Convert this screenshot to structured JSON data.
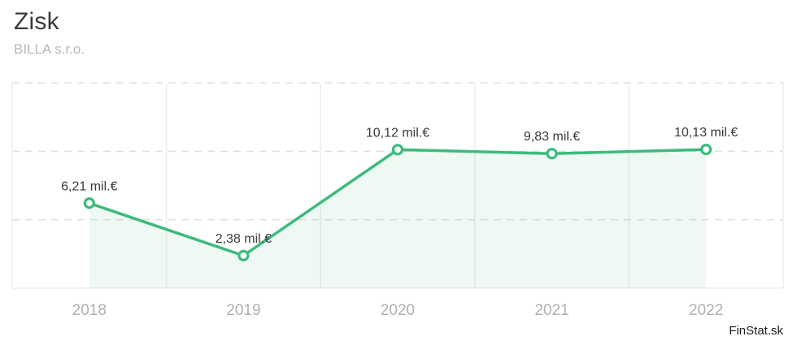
{
  "header": {
    "title": "Zisk",
    "subtitle": "BILLA s.r.o."
  },
  "watermark": {
    "text": "FinStat.sk"
  },
  "chart_data": {
    "type": "line",
    "title": "Zisk",
    "subtitle": "BILLA s.r.o.",
    "categories": [
      "2018",
      "2019",
      "2020",
      "2021",
      "2022"
    ],
    "values": [
      6.21,
      2.38,
      10.12,
      9.83,
      10.13
    ],
    "point_labels": [
      "6,21 mil.€",
      "2,38 mil.€",
      "10,12 mil.€",
      "9,83 mil.€",
      "10,13 mil.€"
    ],
    "unit": "mil.€",
    "xlabel": "",
    "ylabel": "",
    "ylim": [
      0,
      15
    ],
    "gridline_step": 5,
    "grid": "horizontal dashed gridlines at 5/10/15, vertical solid column separators, no y-axis tick labels",
    "legend": "none",
    "area_fill_under_line": true,
    "colors": {
      "line": "#3dba7c",
      "marker_fill": "#ffffff",
      "area_fill": "rgba(61,186,124,0.09)",
      "point_label": "#3a3a3a",
      "axis_label": "#b1aeb4",
      "gridline_dashed": "#e0e0e0",
      "gridline_solid": "#ededed",
      "plot_border": "#ededed"
    }
  }
}
